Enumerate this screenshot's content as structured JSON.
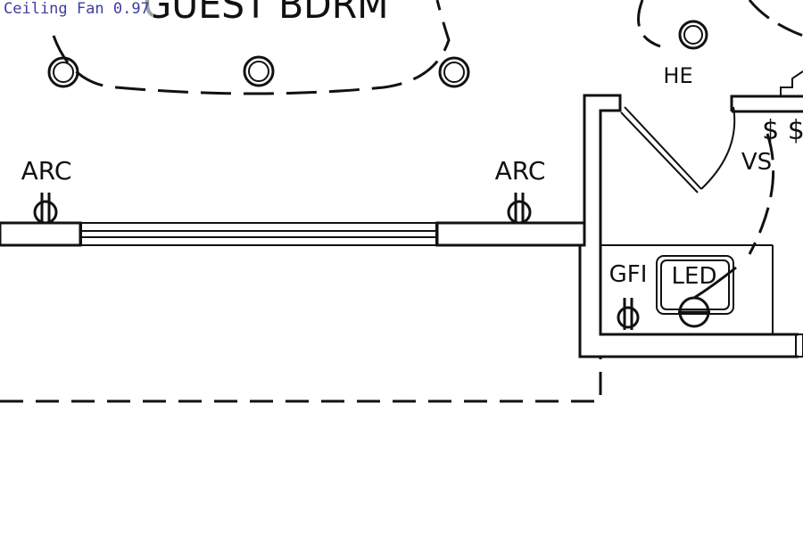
{
  "detection": {
    "label": "Ceiling Fan",
    "score": "0.97",
    "color": "#3b3f9e"
  },
  "room_label": "GUEST  BDRM",
  "outlet_labels": {
    "left": "ARC",
    "right": "ARC"
  },
  "closet_labels": {
    "he": "HE",
    "vs": "VS",
    "switches": "$ $"
  },
  "bath_labels": {
    "gfi": "GFI",
    "led": "LED"
  },
  "colors": {
    "line": "#111111",
    "background": "#ffffff"
  },
  "icons": [
    "ceiling-light-icon",
    "duplex-outlet-icon",
    "switch-icon",
    "led-fixture-icon"
  ]
}
